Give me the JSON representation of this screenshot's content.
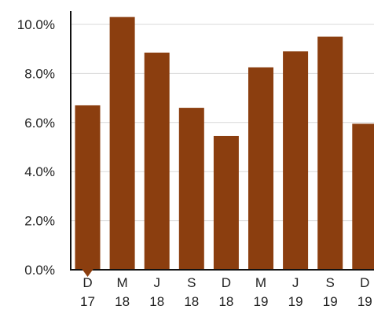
{
  "chart_data": {
    "type": "bar",
    "categories": [
      [
        "D",
        "17"
      ],
      [
        "M",
        "18"
      ],
      [
        "J",
        "18"
      ],
      [
        "S",
        "18"
      ],
      [
        "D",
        "18"
      ],
      [
        "M",
        "19"
      ],
      [
        "J",
        "19"
      ],
      [
        "S",
        "19"
      ],
      [
        "D",
        "19"
      ]
    ],
    "values": [
      6.7,
      10.3,
      8.85,
      6.6,
      5.45,
      8.25,
      8.9,
      9.5,
      5.95
    ],
    "ylim": [
      0,
      10.5
    ],
    "yticks": [
      {
        "value": 0,
        "label": "0.0%"
      },
      {
        "value": 2,
        "label": "2.0%"
      },
      {
        "value": 4,
        "label": "4.0%"
      },
      {
        "value": 6,
        "label": "6.0%"
      },
      {
        "value": 8,
        "label": "8.0%"
      },
      {
        "value": 10,
        "label": "10.0%"
      }
    ],
    "title": "",
    "xlabel": "",
    "ylabel": "",
    "grid": true,
    "bar_color": "#8b3e0f",
    "grid_color": "#d9d9d9",
    "axis_color": "#111111"
  }
}
